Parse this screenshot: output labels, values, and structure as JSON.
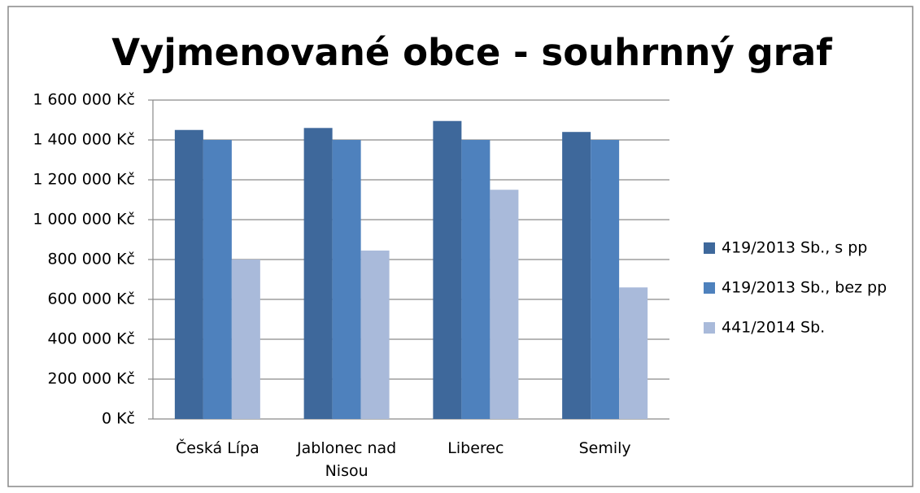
{
  "chart_data": {
    "type": "bar",
    "title": "Vyjmenované obce - souhrnný graf",
    "categories": [
      "Česká Lípa",
      "Jablonec nad Nisou",
      "Liberec",
      "Semily"
    ],
    "series": [
      {
        "name": "419/2013 Sb., s pp",
        "color": "#3e689b",
        "values": [
          1450000,
          1460000,
          1495000,
          1440000
        ]
      },
      {
        "name": "419/2013 Sb., bez pp",
        "color": "#4e81bd",
        "values": [
          1400000,
          1400000,
          1400000,
          1400000
        ]
      },
      {
        "name": "441/2014 Sb.",
        "color": "#a9bada",
        "values": [
          800000,
          845000,
          1150000,
          660000
        ]
      }
    ],
    "ylim": [
      0,
      1600000
    ],
    "yticks": [
      {
        "value": 0,
        "label": "0 Kč"
      },
      {
        "value": 200000,
        "label": "200 000 Kč"
      },
      {
        "value": 400000,
        "label": "400 000 Kč"
      },
      {
        "value": 600000,
        "label": "600 000 Kč"
      },
      {
        "value": 800000,
        "label": "800 000 Kč"
      },
      {
        "value": 1000000,
        "label": "1 000 000 Kč"
      },
      {
        "value": 1200000,
        "label": "1 200 000 Kč"
      },
      {
        "value": 1400000,
        "label": "1 400 000 Kč"
      },
      {
        "value": 1600000,
        "label": "1 600 000 Kč"
      }
    ],
    "grid": true,
    "legend": "right"
  }
}
